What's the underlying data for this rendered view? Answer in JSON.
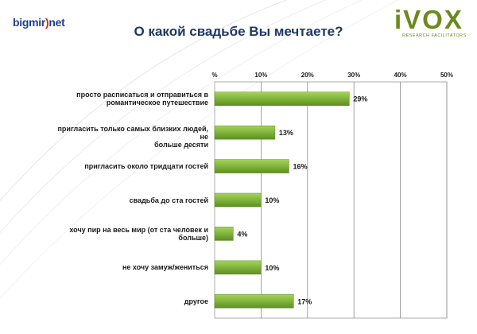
{
  "header": {
    "logo_left_main": "bigmir",
    "logo_left_slash": ")",
    "logo_left_suffix": "net",
    "logo_right_main": "iVOX",
    "logo_right_sub": "RESEARCH FACILITATORS"
  },
  "chart_data": {
    "type": "bar",
    "orientation": "horizontal",
    "title": "О какой свадьбе Вы мечтаете?",
    "xlabel": "",
    "ylabel": "",
    "xlim": [
      0,
      50
    ],
    "tick_labels": [
      "%",
      "10%",
      "20%",
      "30%",
      "40%",
      "50%"
    ],
    "categories": [
      "просто расписаться и отправиться в романтическое путешествие",
      "пригласить только самых близких людей, не больше десяти",
      "пригласить около тридцати гостей",
      "свадьба до ста гостей",
      "хочу пир на весь мир (от ста человек и больше)",
      "не хочу замуж/жениться",
      "другое"
    ],
    "category_lines": [
      [
        "просто расписаться и отправиться в",
        "романтическое путешествие"
      ],
      [
        "пригласить только самых близких людей, не",
        "больше десяти"
      ],
      [
        "пригласить около тридцати гостей"
      ],
      [
        "свадьба до ста гостей"
      ],
      [
        "хочу пир на весь мир (от ста человек и",
        "больше)"
      ],
      [
        "не хочу замуж/жениться"
      ],
      [
        "другое"
      ]
    ],
    "values": [
      29,
      13,
      16,
      10,
      4,
      10,
      17
    ],
    "data_labels": [
      "29%",
      "13%",
      "16%",
      "10%",
      "4%",
      "10%",
      "17%"
    ],
    "grid": true,
    "legend": "none",
    "bar_color": "#7fb43a"
  }
}
